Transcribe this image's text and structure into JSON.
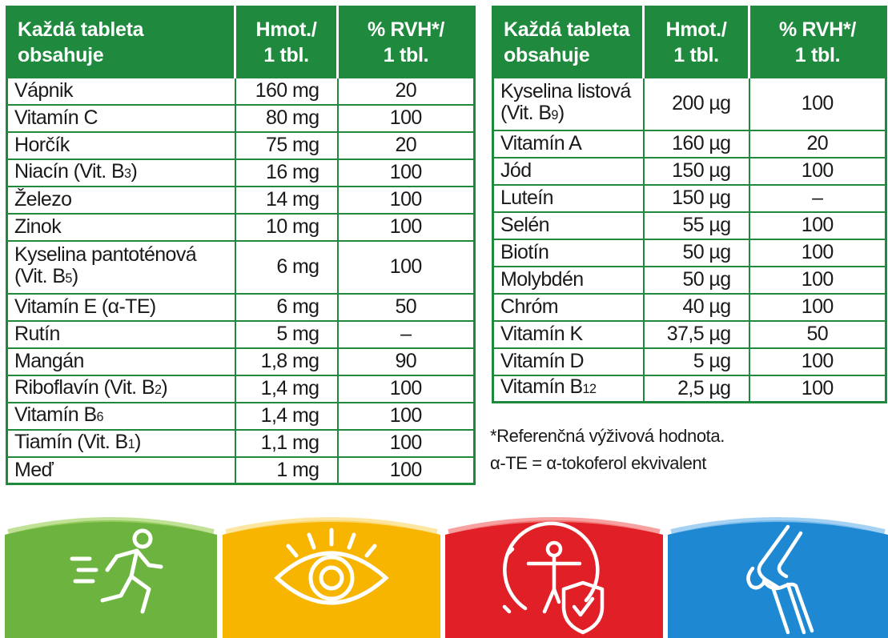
{
  "left_table": {
    "header": {
      "col1_line1": "Každá tableta",
      "col1_line2": "obsahuje",
      "col2_line1": "Hmot./",
      "col2_line2": "1 tbl.",
      "col3_line1": "% RVH*/",
      "col3_line2": "1 tbl."
    },
    "rows": [
      {
        "name": "Vápnik",
        "name2": "",
        "sub": "",
        "sub_suffix": "",
        "mass": "160 mg",
        "rvh": "20"
      },
      {
        "name": "Vitamín C",
        "name2": "",
        "sub": "",
        "sub_suffix": "",
        "mass": "80 mg",
        "rvh": "100"
      },
      {
        "name": "Horčík",
        "name2": "",
        "sub": "",
        "sub_suffix": "",
        "mass": "75 mg",
        "rvh": "20"
      },
      {
        "name": "Niacín (Vit. B",
        "name2": "",
        "sub": "3",
        "sub_suffix": ")",
        "mass": "16 mg",
        "rvh": "100"
      },
      {
        "name": "Železo",
        "name2": "",
        "sub": "",
        "sub_suffix": "",
        "mass": "14 mg",
        "rvh": "100"
      },
      {
        "name": "Zinok",
        "name2": "",
        "sub": "",
        "sub_suffix": "",
        "mass": "10 mg",
        "rvh": "100"
      },
      {
        "name": "Kyselina pantoténová",
        "name2": "(Vit. B",
        "sub": "5",
        "sub_suffix": ")",
        "mass": "6 mg",
        "rvh": "100"
      },
      {
        "name": "Vitamín E (α-TE)",
        "name2": "",
        "sub": "",
        "sub_suffix": "",
        "mass": "6 mg",
        "rvh": "50"
      },
      {
        "name": "Rutín",
        "name2": "",
        "sub": "",
        "sub_suffix": "",
        "mass": "5 mg",
        "rvh": "–"
      },
      {
        "name": "Mangán",
        "name2": "",
        "sub": "",
        "sub_suffix": "",
        "mass": "1,8 mg",
        "rvh": "90"
      },
      {
        "name": "Riboflavín (Vit. B",
        "name2": "",
        "sub": "2",
        "sub_suffix": ")",
        "mass": "1,4 mg",
        "rvh": "100"
      },
      {
        "name": "Vitamín B",
        "name2": "",
        "sub": "6",
        "sub_suffix": "",
        "mass": "1,4 mg",
        "rvh": "100"
      },
      {
        "name": "Tiamín (Vit. B",
        "name2": "",
        "sub": "1",
        "sub_suffix": ")",
        "mass": "1,1 mg",
        "rvh": "100"
      },
      {
        "name": "Meď",
        "name2": "",
        "sub": "",
        "sub_suffix": "",
        "mass": "1 mg",
        "rvh": "100"
      }
    ]
  },
  "right_table": {
    "header": {
      "col1_line1": "Každá tableta",
      "col1_line2": "obsahuje",
      "col2_line1": "Hmot./",
      "col2_line2": "1 tbl.",
      "col3_line1": "% RVH*/",
      "col3_line2": "1 tbl."
    },
    "rows": [
      {
        "name": "Kyselina listová",
        "name2": "(Vit. B",
        "sub": "9",
        "sub_suffix": ")",
        "mass": "200 µg",
        "rvh": "100"
      },
      {
        "name": "Vitamín A",
        "name2": "",
        "sub": "",
        "sub_suffix": "",
        "mass": "160 µg",
        "rvh": "20"
      },
      {
        "name": "Jód",
        "name2": "",
        "sub": "",
        "sub_suffix": "",
        "mass": "150 µg",
        "rvh": "100"
      },
      {
        "name": "Luteín",
        "name2": "",
        "sub": "",
        "sub_suffix": "",
        "mass": "150 µg",
        "rvh": "–"
      },
      {
        "name": "Selén",
        "name2": "",
        "sub": "",
        "sub_suffix": "",
        "mass": "55 µg",
        "rvh": "100"
      },
      {
        "name": "Biotín",
        "name2": "",
        "sub": "",
        "sub_suffix": "",
        "mass": "50 µg",
        "rvh": "100"
      },
      {
        "name": "Molybdén",
        "name2": "",
        "sub": "",
        "sub_suffix": "",
        "mass": "50 µg",
        "rvh": "100"
      },
      {
        "name": "Chróm",
        "name2": "",
        "sub": "",
        "sub_suffix": "",
        "mass": "40 µg",
        "rvh": "100"
      },
      {
        "name": "Vitamín K",
        "name2": "",
        "sub": "",
        "sub_suffix": "",
        "mass": "37,5 µg",
        "rvh": "50"
      },
      {
        "name": "Vitamín D",
        "name2": "",
        "sub": "",
        "sub_suffix": "",
        "mass": "5 µg",
        "rvh": "100"
      },
      {
        "name": "Vitamín B",
        "name2": "",
        "sub": "12",
        "sub_suffix": "",
        "mass": "2,5 µg",
        "rvh": "100"
      }
    ]
  },
  "footnotes": {
    "line1": "*Referenčná výživová hodnota.",
    "line2": "α-TE = α-tokoferol ekvivalent"
  },
  "panels": [
    {
      "icon": "running-person-icon",
      "color": "#6db33f"
    },
    {
      "icon": "eye-icon",
      "color": "#f7b500"
    },
    {
      "icon": "person-shield-icon",
      "color": "#e01f26"
    },
    {
      "icon": "knee-joint-icon",
      "color": "#1e88d2"
    }
  ],
  "colors": {
    "table_green": "#1f8a3e",
    "text": "#1a1a1a"
  }
}
